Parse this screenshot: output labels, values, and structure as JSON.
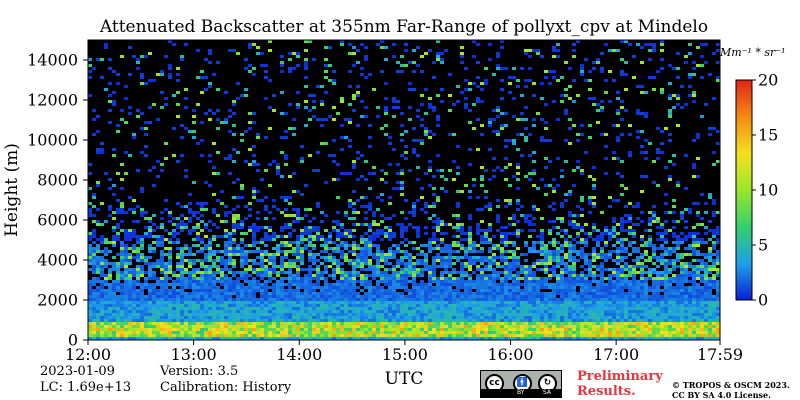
{
  "chart_data": {
    "type": "heatmap",
    "title": "Attenuated Backscatter at 355nm Far-Range of pollyxt_cpv at Mindelo",
    "xlabel": "UTC",
    "ylabel": "Height (m)",
    "x_tick_labels": [
      "12:00",
      "13:00",
      "14:00",
      "15:00",
      "16:00",
      "17:00",
      "17:59"
    ],
    "x_range_hours": [
      12.0,
      17.983
    ],
    "y_tick_values": [
      0,
      2000,
      4000,
      6000,
      8000,
      10000,
      12000,
      14000
    ],
    "y_tick_labels": [
      "0",
      "2000",
      "4000",
      "6000",
      "8000",
      "10000",
      "12000",
      "14000"
    ],
    "ylim": [
      0,
      15000
    ],
    "colorbar": {
      "unit": "Mm⁻¹ * sr⁻¹",
      "range": [
        0,
        20
      ],
      "tick_values": [
        0,
        5,
        10,
        15,
        20
      ],
      "tick_labels": [
        "0",
        "5",
        "10",
        "15",
        "20"
      ],
      "colors": [
        "#0a1fd6",
        "#1ea0e8",
        "#33d06b",
        "#9be62a",
        "#f4e020",
        "#f58a12",
        "#e0231a"
      ]
    },
    "profile_layers": [
      {
        "height_range_m": [
          0,
          200
        ],
        "backscatter": 4
      },
      {
        "height_range_m": [
          200,
          900
        ],
        "backscatter": 11
      },
      {
        "height_range_m": [
          900,
          2000
        ],
        "backscatter": 3.5
      },
      {
        "height_range_m": [
          2000,
          5000
        ],
        "backscatter": 2
      },
      {
        "height_range_m": [
          5000,
          15000
        ],
        "backscatter": 0.6
      }
    ],
    "no_data_color": "#000000"
  },
  "footer": {
    "date": "2023-01-09",
    "lc": "LC: 1.69e+13",
    "version": "Version: 3.5",
    "calibration": "Calibration: History",
    "preliminary_line1": "Preliminary",
    "preliminary_line2": "Results.",
    "copyright_line1": "© TROPOS & OSCM 2023.",
    "copyright_line2": "CC BY SA 4.0 License.",
    "cc_badge": {
      "left": "cc",
      "by": "BY",
      "sa": "SA"
    }
  }
}
